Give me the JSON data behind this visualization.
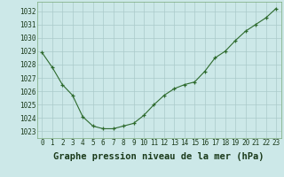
{
  "hours": [
    0,
    1,
    2,
    3,
    4,
    5,
    6,
    7,
    8,
    9,
    10,
    11,
    12,
    13,
    14,
    15,
    16,
    17,
    18,
    19,
    20,
    21,
    22,
    23
  ],
  "pressure": [
    1028.9,
    1027.8,
    1026.5,
    1025.7,
    1024.1,
    1023.4,
    1023.2,
    1023.2,
    1023.4,
    1023.6,
    1024.2,
    1025.0,
    1025.7,
    1026.2,
    1026.5,
    1026.7,
    1027.5,
    1028.5,
    1029.0,
    1029.8,
    1030.5,
    1031.0,
    1031.5,
    1032.2
  ],
  "line_color": "#2d6a2d",
  "marker": "+",
  "bg_color": "#cce8e8",
  "grid_color": "#aacaca",
  "xlabel": "Graphe pression niveau de la mer (hPa)",
  "xlabel_fontsize": 7.5,
  "ylabel_ticks": [
    1023,
    1024,
    1025,
    1026,
    1027,
    1028,
    1029,
    1030,
    1031,
    1032
  ],
  "ylim": [
    1022.5,
    1032.7
  ],
  "xlim": [
    -0.5,
    23.5
  ],
  "tick_color": "#1a3a1a",
  "tick_fontsize": 5.5
}
